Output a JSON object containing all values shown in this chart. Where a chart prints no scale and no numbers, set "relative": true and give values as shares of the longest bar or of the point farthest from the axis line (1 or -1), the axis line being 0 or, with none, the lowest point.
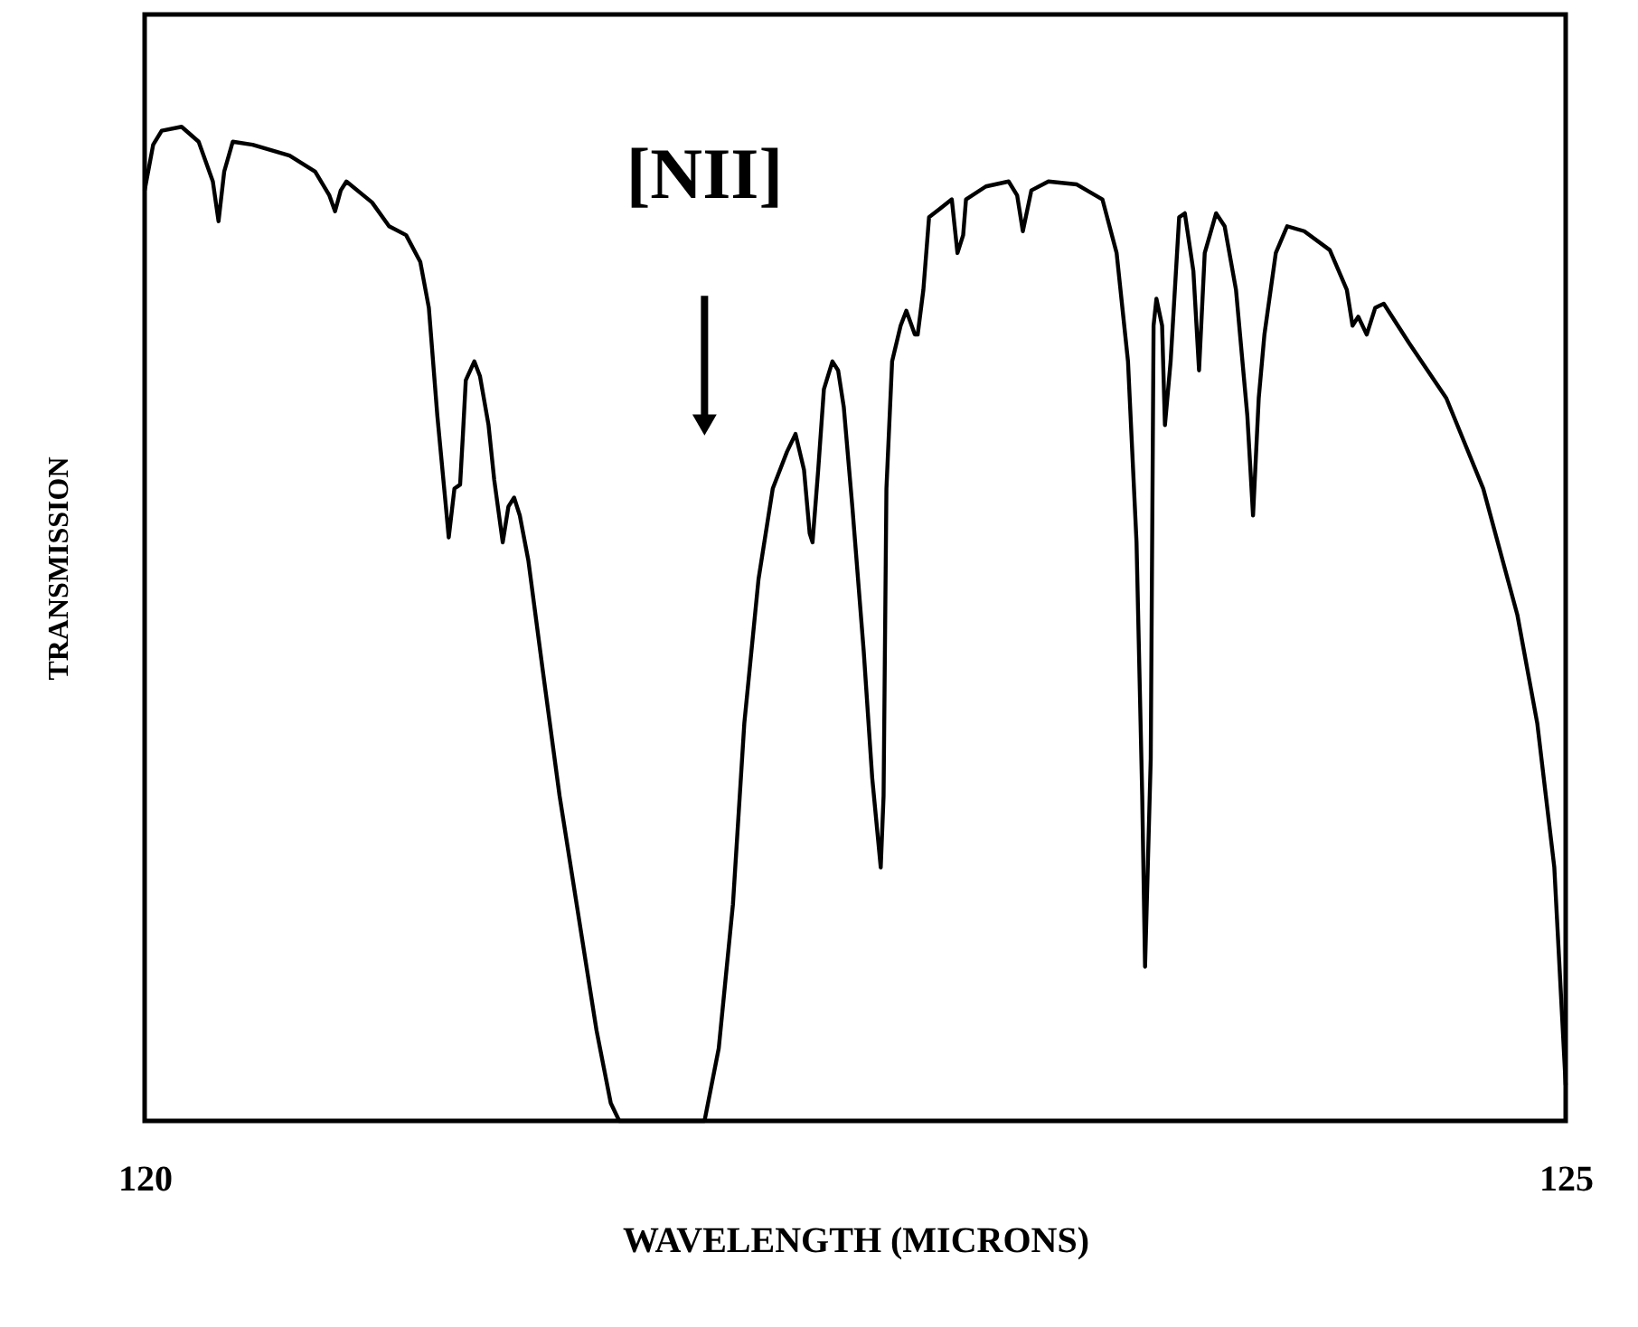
{
  "chart_data": {
    "type": "line",
    "relative": true,
    "xlabel": "WAVELENGTH (MICRONS)",
    "ylabel": "TRANSMISSION",
    "xlim": [
      120,
      125
    ],
    "xticks": [
      120,
      125
    ],
    "annotations": [
      {
        "text": "[NII]",
        "x": 121.97,
        "y": 0.7
      }
    ],
    "series": [
      {
        "color": "#000000",
        "x": [
          120.0,
          120.03,
          120.06,
          120.13,
          120.19,
          120.24,
          120.26,
          120.28,
          120.31,
          120.38,
          120.51,
          120.6,
          120.65,
          120.67,
          120.69,
          120.71,
          120.8,
          120.86,
          120.92,
          120.97,
          121.0,
          121.03,
          121.06,
          121.07,
          121.09,
          121.11,
          121.12,
          121.13,
          121.16,
          121.18,
          121.21,
          121.23,
          121.26,
          121.28,
          121.3,
          121.32,
          121.35,
          121.4,
          121.46,
          121.53,
          121.59,
          121.64,
          121.67,
          121.97,
          122.02,
          122.07,
          122.11,
          122.16,
          122.21,
          122.26,
          122.29,
          122.32,
          122.34,
          122.35,
          122.37,
          122.39,
          122.42,
          122.44,
          122.46,
          122.49,
          122.53,
          122.56,
          122.59,
          122.6,
          122.61,
          122.63,
          122.66,
          122.68,
          122.71,
          122.72,
          122.74,
          122.76,
          122.8,
          122.84,
          122.86,
          122.88,
          122.89,
          122.96,
          123.04,
          123.07,
          123.09,
          123.12,
          123.18,
          123.28,
          123.37,
          123.42,
          123.46,
          123.49,
          123.51,
          123.52,
          123.54,
          123.55,
          123.56,
          123.58,
          123.59,
          123.61,
          123.64,
          123.66,
          123.69,
          123.71,
          123.73,
          123.77,
          123.8,
          123.84,
          123.88,
          123.9,
          123.92,
          123.94,
          123.98,
          124.02,
          124.08,
          124.17,
          124.23,
          124.25,
          124.27,
          124.3,
          124.33,
          124.36,
          124.45,
          124.58,
          124.71,
          124.83,
          124.9,
          124.96,
          125.0
        ],
        "values": [
          0.936,
          0.982,
          0.996,
          1.0,
          0.985,
          0.945,
          0.905,
          0.955,
          0.985,
          0.982,
          0.971,
          0.955,
          0.931,
          0.915,
          0.936,
          0.945,
          0.924,
          0.9,
          0.891,
          0.864,
          0.818,
          0.709,
          0.618,
          0.587,
          0.636,
          0.64,
          0.691,
          0.745,
          0.764,
          0.749,
          0.7,
          0.645,
          0.582,
          0.618,
          0.627,
          0.609,
          0.564,
          0.455,
          0.327,
          0.2,
          0.091,
          0.018,
          0,
          0,
          0.073,
          0.218,
          0.4,
          0.545,
          0.636,
          0.673,
          0.691,
          0.655,
          0.591,
          0.582,
          0.655,
          0.736,
          0.764,
          0.755,
          0.718,
          0.618,
          0.473,
          0.345,
          0.255,
          0.327,
          0.636,
          0.764,
          0.8,
          0.815,
          0.791,
          0.791,
          0.836,
          0.909,
          0.918,
          0.927,
          0.873,
          0.891,
          0.927,
          0.94,
          0.945,
          0.931,
          0.895,
          0.936,
          0.945,
          0.942,
          0.927,
          0.873,
          0.764,
          0.582,
          0.327,
          0.155,
          0.364,
          0.8,
          0.827,
          0.8,
          0.7,
          0.764,
          0.909,
          0.913,
          0.855,
          0.755,
          0.873,
          0.913,
          0.9,
          0.836,
          0.709,
          0.609,
          0.727,
          0.791,
          0.873,
          0.9,
          0.895,
          0.876,
          0.836,
          0.8,
          0.809,
          0.791,
          0.818,
          0.822,
          0.782,
          0.727,
          0.636,
          0.509,
          0.4,
          0.255,
          0.036
        ]
      }
    ]
  }
}
